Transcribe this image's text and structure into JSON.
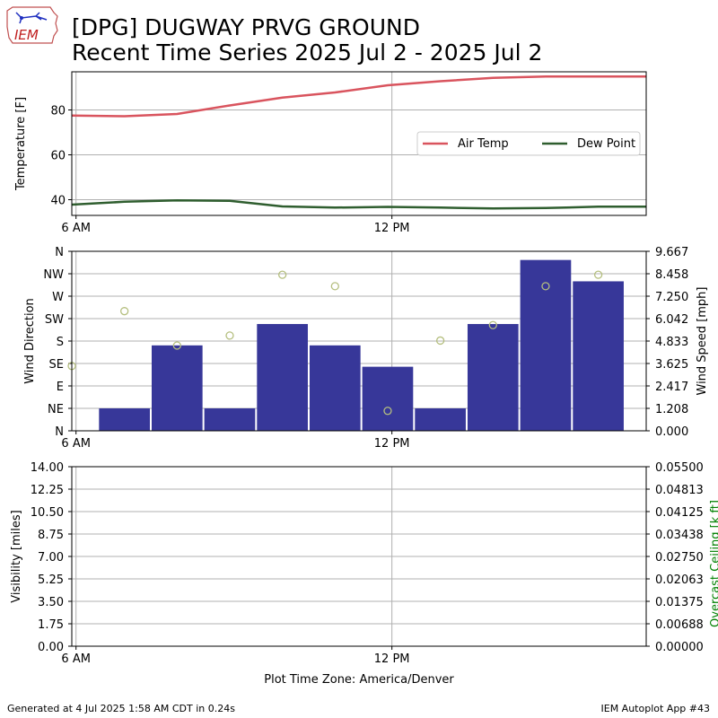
{
  "header": {
    "title_line1": "[DPG] DUGWAY PRVG GROUND",
    "title_line2": "Recent Time Series 2025 Jul 2 - 2025 Jul 2",
    "logo_text": "IEM"
  },
  "footer": {
    "generated": "Generated at 4 Jul 2025 1:58 AM CDT in 0.24s",
    "app": "IEM Autoplot App #43"
  },
  "colors": {
    "air_temp": "#d9545e",
    "dew_point": "#2f5e2f",
    "wind_speed_bar": "#373799",
    "wind_dir_marker": "#b5bf7f",
    "ceiling_label": "#008000",
    "grid": "#b0b0b0"
  },
  "chart_data": [
    {
      "type": "line",
      "name": "temperature",
      "ylabel": "Temperature [F]",
      "ylim": [
        33,
        97
      ],
      "yticks": [
        40,
        60,
        80
      ],
      "x_range_hours": [
        5.92,
        16.83
      ],
      "x_ticks": [
        {
          "hour": 6,
          "label": "6 AM"
        },
        {
          "hour": 12,
          "label": "12 PM"
        }
      ],
      "legend": {
        "position": "right",
        "entries": [
          "Air Temp",
          "Dew Point"
        ]
      },
      "grid": true,
      "series": [
        {
          "name": "Air Temp",
          "color_key": "air_temp",
          "x": [
            5.92,
            6.92,
            7.92,
            8.92,
            9.92,
            10.92,
            11.92,
            12.92,
            13.92,
            14.92,
            15.92,
            16.83
          ],
          "y": [
            77.5,
            77.2,
            78.2,
            82.0,
            85.5,
            87.8,
            91.0,
            92.8,
            94.3,
            94.9,
            94.9,
            94.9
          ]
        },
        {
          "name": "Dew Point",
          "color_key": "dew_point",
          "x": [
            5.92,
            6.92,
            7.92,
            8.92,
            9.92,
            10.92,
            11.92,
            12.92,
            13.92,
            14.92,
            15.92,
            16.83
          ],
          "y": [
            37.8,
            39.1,
            39.7,
            39.5,
            37.0,
            36.5,
            36.8,
            36.5,
            36.1,
            36.3,
            36.9,
            36.9
          ]
        }
      ]
    },
    {
      "type": "bar",
      "name": "wind",
      "ylabel_left": "Wind Direction",
      "ylabel_right": "Wind Speed [mph]",
      "direction_ticks": [
        "N",
        "NE",
        "E",
        "SE",
        "S",
        "SW",
        "W",
        "NW",
        "N"
      ],
      "speed_ylim": [
        0,
        9.667
      ],
      "speed_ticks": [
        "0.000",
        "1.208",
        "2.417",
        "3.625",
        "4.833",
        "6.042",
        "7.250",
        "8.458",
        "9.667"
      ],
      "x_range_hours": [
        5.92,
        16.83
      ],
      "x_ticks": [
        {
          "hour": 6,
          "label": "6 AM"
        },
        {
          "hour": 12,
          "label": "12 PM"
        }
      ],
      "grid": true,
      "speed_bars": [
        {
          "start": 6.42,
          "end": 7.42,
          "mph": 1.208
        },
        {
          "start": 7.42,
          "end": 8.42,
          "mph": 4.6
        },
        {
          "start": 8.42,
          "end": 9.42,
          "mph": 1.208
        },
        {
          "start": 9.42,
          "end": 10.42,
          "mph": 5.75
        },
        {
          "start": 10.42,
          "end": 11.42,
          "mph": 4.6
        },
        {
          "start": 11.42,
          "end": 12.42,
          "mph": 3.45
        },
        {
          "start": 12.42,
          "end": 13.42,
          "mph": 1.208
        },
        {
          "start": 13.42,
          "end": 14.42,
          "mph": 5.75
        },
        {
          "start": 14.42,
          "end": 15.42,
          "mph": 9.2
        },
        {
          "start": 15.42,
          "end": 16.42,
          "mph": 8.05
        }
      ],
      "direction_points": [
        {
          "hour": 5.92,
          "deg": 130
        },
        {
          "hour": 6.92,
          "deg": 240
        },
        {
          "hour": 7.92,
          "deg": 171
        },
        {
          "hour": 8.92,
          "deg": 191
        },
        {
          "hour": 9.92,
          "deg": 313
        },
        {
          "hour": 10.92,
          "deg": 290
        },
        {
          "hour": 11.92,
          "deg": 40
        },
        {
          "hour": 12.92,
          "deg": 181
        },
        {
          "hour": 13.92,
          "deg": 212
        },
        {
          "hour": 14.92,
          "deg": 290
        },
        {
          "hour": 15.92,
          "deg": 313
        }
      ]
    },
    {
      "type": "line",
      "name": "visibility",
      "ylabel_left": "Visibility [miles]",
      "ylabel_right": "Overcast Ceiling [k ft]",
      "vis_ticks": [
        "0.00",
        "1.75",
        "3.50",
        "5.25",
        "7.00",
        "8.75",
        "10.50",
        "12.25",
        "14.00"
      ],
      "ceiling_ticks": [
        "0.00000",
        "0.00688",
        "0.01375",
        "0.02063",
        "0.02750",
        "0.03438",
        "0.04125",
        "0.04813",
        "0.05500"
      ],
      "x_range_hours": [
        5.92,
        16.83
      ],
      "x_ticks": [
        {
          "hour": 6,
          "label": "6 AM"
        },
        {
          "hour": 12,
          "label": "12 PM"
        }
      ],
      "xlabel": "Plot Time Zone: America/Denver",
      "grid": true,
      "series": []
    }
  ]
}
